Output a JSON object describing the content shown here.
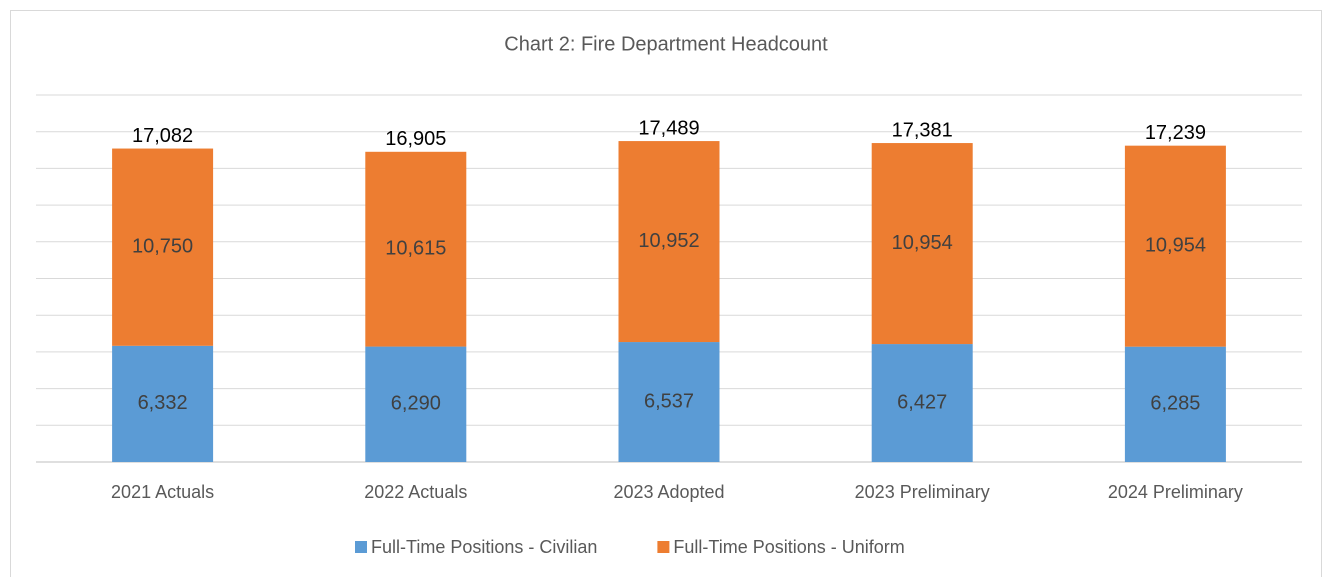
{
  "chart_data": {
    "type": "stacked_bar",
    "title": "Chart 2: Fire Department Headcount",
    "categories": [
      "2021 Actuals",
      "2022 Actuals",
      "2023 Adopted",
      "2023 Preliminary",
      "2024 Preliminary"
    ],
    "series": [
      {
        "name": "Full-Time Positions - Civilian",
        "color": "#5b9bd5",
        "values": [
          6332,
          6290,
          6537,
          6427,
          6285
        ],
        "value_labels": [
          "6,332",
          "6,290",
          "6,537",
          "6,427",
          "6,285"
        ]
      },
      {
        "name": "Full-Time Positions - Uniform",
        "color": "#ed7d31",
        "values": [
          10750,
          10615,
          10952,
          10954,
          10954
        ],
        "value_labels": [
          "10,750",
          "10,615",
          "10,952",
          "10,954",
          "10,954"
        ]
      }
    ],
    "totals": [
      17082,
      16905,
      17489,
      17381,
      17239
    ],
    "total_labels": [
      "17,082",
      "16,905",
      "17,489",
      "17,381",
      "17,239"
    ],
    "ylim": [
      0,
      20000
    ],
    "yticks": [
      0,
      2000,
      4000,
      6000,
      8000,
      10000,
      12000,
      14000,
      16000,
      18000,
      20000
    ],
    "grid": true,
    "legend": "bottom"
  }
}
